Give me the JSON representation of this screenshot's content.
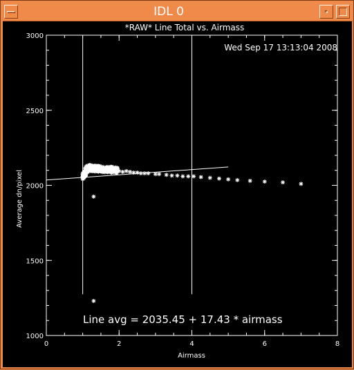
{
  "window": {
    "title": "IDL 0",
    "accent_color": "#f08a4b",
    "menu_icon": "window-menu-icon",
    "minimize_icon": "minimize-icon",
    "maximize_icon": "maximize-icon"
  },
  "plot": {
    "timestamp": "Wed Sep 17 13:13:04 2008",
    "fit_label": "Line avg = 2035.45 + 17.43 * airmass"
  },
  "chart_data": {
    "type": "scatter",
    "title": "*RAW* Line Total vs. Airmass",
    "xlabel": "Airmass",
    "ylabel": "Average dn/pixel",
    "xlim": [
      0,
      8
    ],
    "ylim": [
      1000,
      3000
    ],
    "xticks": [
      "0",
      "2",
      "4",
      "6",
      "8"
    ],
    "yticks": [
      "1000",
      "1500",
      "2000",
      "2500",
      "3000"
    ],
    "grid": false,
    "marker": "*",
    "series_color": "#ffffff",
    "vertical_lines": [
      1.0,
      4.0
    ],
    "fit": {
      "intercept": 2035.45,
      "slope": 17.43,
      "x_range": [
        0,
        5.0
      ]
    },
    "dense_cluster": {
      "x_range": [
        1.0,
        2.0
      ],
      "y_range": [
        2050,
        2140
      ]
    },
    "points": [
      [
        1.0,
        2060
      ],
      [
        1.02,
        2075
      ],
      [
        1.04,
        2090
      ],
      [
        1.06,
        2110
      ],
      [
        1.08,
        2120
      ],
      [
        1.1,
        2125
      ],
      [
        1.12,
        2130
      ],
      [
        1.15,
        2120
      ],
      [
        1.18,
        2110
      ],
      [
        1.2,
        2100
      ],
      [
        1.25,
        2095
      ],
      [
        1.3,
        2105
      ],
      [
        1.35,
        2115
      ],
      [
        1.4,
        2110
      ],
      [
        1.45,
        2100
      ],
      [
        1.5,
        2105
      ],
      [
        1.55,
        2110
      ],
      [
        1.6,
        2100
      ],
      [
        1.65,
        2095
      ],
      [
        1.7,
        2110
      ],
      [
        1.75,
        2105
      ],
      [
        1.8,
        2100
      ],
      [
        1.85,
        2110
      ],
      [
        1.9,
        2105
      ],
      [
        1.95,
        2100
      ],
      [
        2.0,
        2095
      ],
      [
        2.1,
        2090
      ],
      [
        2.2,
        2095
      ],
      [
        2.3,
        2090
      ],
      [
        2.4,
        2085
      ],
      [
        2.5,
        2085
      ],
      [
        2.6,
        2080
      ],
      [
        2.7,
        2080
      ],
      [
        2.8,
        2080
      ],
      [
        3.0,
        2075
      ],
      [
        3.1,
        2075
      ],
      [
        3.3,
        2070
      ],
      [
        3.45,
        2065
      ],
      [
        3.6,
        2065
      ],
      [
        3.75,
        2060
      ],
      [
        3.9,
        2060
      ],
      [
        4.05,
        2060
      ],
      [
        4.25,
        2055
      ],
      [
        4.5,
        2050
      ],
      [
        4.75,
        2045
      ],
      [
        5.0,
        2040
      ],
      [
        5.25,
        2035
      ],
      [
        5.6,
        2030
      ],
      [
        6.0,
        2025
      ],
      [
        6.5,
        2020
      ],
      [
        7.0,
        2010
      ],
      [
        1.3,
        1925
      ],
      [
        1.3,
        1230
      ]
    ]
  }
}
